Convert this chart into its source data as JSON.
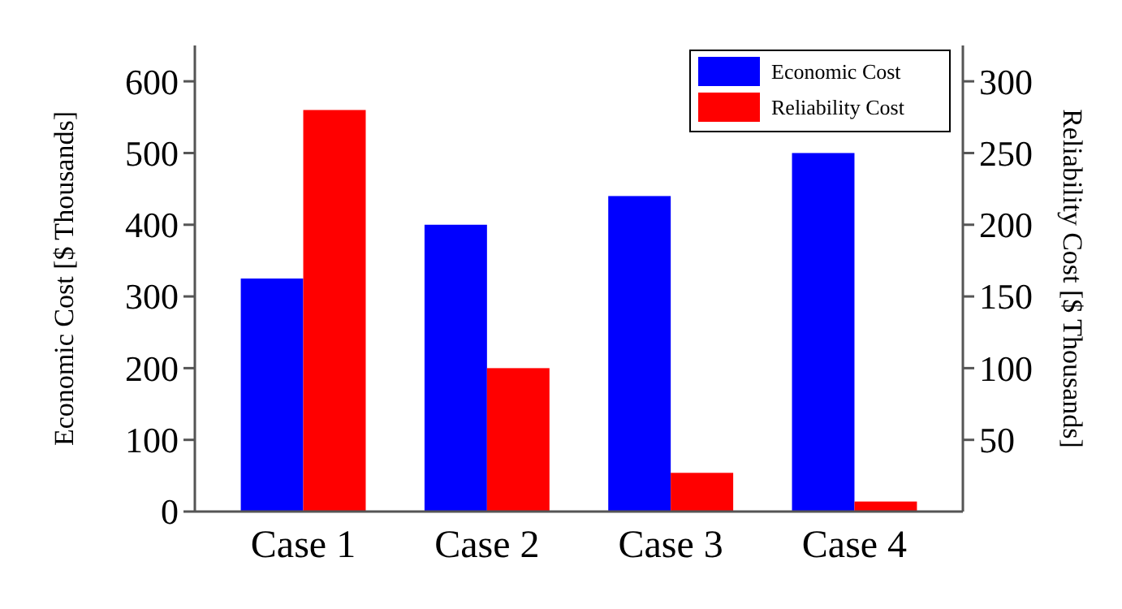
{
  "chart_data": {
    "type": "bar",
    "categories": [
      "Case 1",
      "Case 2",
      "Case 3",
      "Case 4"
    ],
    "ylabel": "Economic Cost [$ Thousands]",
    "y2label": "Reliability Cost [$ Thousands]",
    "series": [
      {
        "name": "Economic Cost",
        "color": "#0000ff",
        "values": [
          325,
          400,
          440,
          500
        ]
      },
      {
        "name": "Reliability Cost",
        "color": "#ff0000",
        "axis": "y2",
        "values": [
          280,
          100,
          27,
          7
        ]
      }
    ],
    "ylim": [
      0,
      650
    ],
    "yticks": [
      0,
      100,
      200,
      300,
      400,
      500,
      600
    ],
    "y2lim": [
      0,
      325
    ],
    "y2ticks": [
      50,
      100,
      150,
      200,
      250,
      300
    ],
    "legend": "top right",
    "grid": false
  }
}
